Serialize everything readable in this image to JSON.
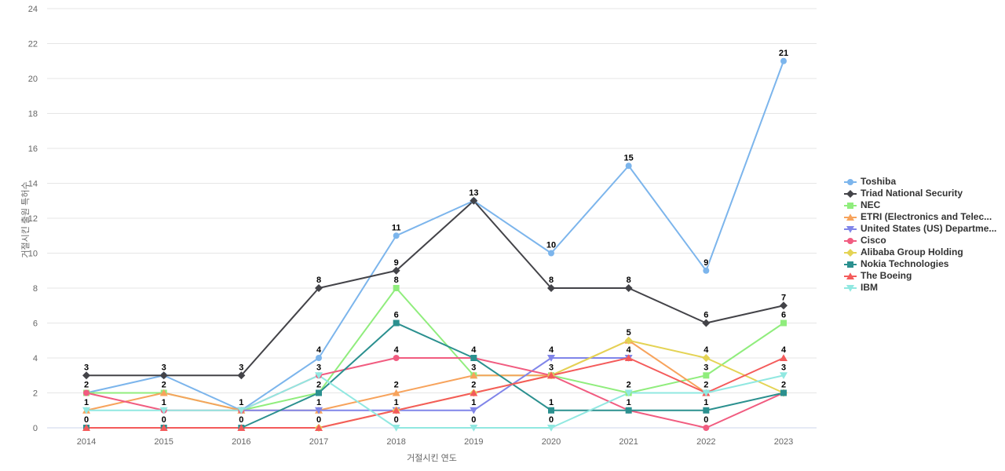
{
  "chart_data": {
    "type": "line",
    "title": "",
    "xlabel": "거절시킨 연도",
    "ylabel": "거절시킨 출원 특허수",
    "categories": [
      "2014",
      "2015",
      "2016",
      "2017",
      "2018",
      "2019",
      "2020",
      "2021",
      "2022",
      "2023"
    ],
    "ylim": [
      0,
      24
    ],
    "ytick_interval": 2,
    "grid": "horizontal",
    "legend_position": "right",
    "series": [
      {
        "name": "Toshiba",
        "color": "#7cb5ec",
        "marker": "circle",
        "values": [
          2,
          3,
          1,
          4,
          11,
          13,
          10,
          15,
          9,
          21
        ]
      },
      {
        "name": "Triad National Security",
        "color": "#434348",
        "marker": "diamond",
        "values": [
          3,
          3,
          3,
          8,
          9,
          13,
          8,
          8,
          6,
          7
        ]
      },
      {
        "name": "NEC",
        "color": "#90ed7d",
        "marker": "square",
        "values": [
          2,
          2,
          1,
          2,
          8,
          3,
          3,
          2,
          3,
          6
        ]
      },
      {
        "name": "ETRI (Electronics and Telec...",
        "color": "#f7a35c",
        "marker": "triangle",
        "values": [
          1,
          2,
          1,
          1,
          2,
          3,
          3,
          5,
          2,
          null
        ]
      },
      {
        "name": "United States (US) Departme...",
        "color": "#8085e9",
        "marker": "triangle-down",
        "values": [
          null,
          null,
          1,
          1,
          1,
          1,
          4,
          4,
          null,
          null
        ]
      },
      {
        "name": "Cisco",
        "color": "#f15c80",
        "marker": "circle",
        "values": [
          2,
          1,
          1,
          3,
          4,
          4,
          3,
          1,
          0,
          2
        ]
      },
      {
        "name": "Alibaba Group Holding",
        "color": "#e4d354",
        "marker": "diamond",
        "values": [
          null,
          null,
          null,
          0,
          1,
          2,
          3,
          5,
          4,
          2
        ]
      },
      {
        "name": "Nokia Technologies",
        "color": "#2b908f",
        "marker": "square",
        "values": [
          0,
          0,
          0,
          2,
          6,
          4,
          1,
          1,
          1,
          2
        ]
      },
      {
        "name": "The Boeing",
        "color": "#f45b5b",
        "marker": "triangle",
        "values": [
          0,
          0,
          0,
          0,
          1,
          2,
          3,
          4,
          2,
          4
        ]
      },
      {
        "name": "IBM",
        "color": "#91e8e1",
        "marker": "triangle-down",
        "values": [
          1,
          1,
          1,
          3,
          0,
          0,
          0,
          2,
          2,
          3
        ]
      }
    ],
    "colors": {
      "grid_line": "#e6e6e6",
      "axis_line": "#ccd6eb",
      "tick_label": "#666666",
      "data_label": "#000000",
      "legend_text": "#333333",
      "background": "#ffffff"
    }
  }
}
